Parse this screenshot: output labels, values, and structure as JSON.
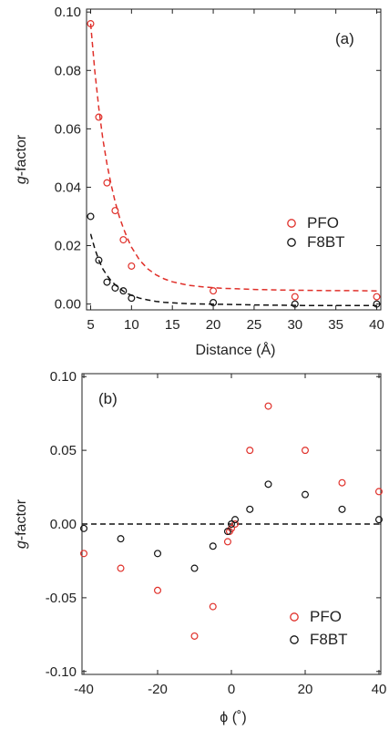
{
  "chart_data": [
    {
      "type": "scatter",
      "panel_label": "(a)",
      "xlabel": "Distance (Å)",
      "ylabel_italic": "g",
      "ylabel_rest": "-factor",
      "xlim": [
        4.5,
        40.5
      ],
      "ylim": [
        -0.002,
        0.101
      ],
      "xticks": [
        5,
        10,
        15,
        20,
        25,
        30,
        35,
        40
      ],
      "yticks": [
        0.0,
        0.02,
        0.04,
        0.06,
        0.08,
        0.1
      ],
      "ytick_labels": [
        "0.00",
        "0.02",
        "0.04",
        "0.06",
        "0.08",
        "0.10"
      ],
      "legend_position": "right",
      "series": [
        {
          "name": "PFO",
          "color": "#e0302a",
          "x": [
            5,
            6,
            7,
            8,
            9,
            10,
            20,
            30,
            40
          ],
          "y": [
            0.096,
            0.064,
            0.0415,
            0.032,
            0.022,
            0.013,
            0.0045,
            0.0025,
            0.0025
          ],
          "fit": {
            "x": [
              5,
              5.5,
              6,
              6.5,
              7,
              7.5,
              8,
              8.5,
              9,
              9.5,
              10,
              11,
              12,
              13,
              14,
              15,
              17,
              19,
              21,
              23,
              25,
              28,
              31,
              34,
              37,
              40
            ],
            "y": [
              0.096,
              0.08,
              0.067,
              0.0565,
              0.048,
              0.041,
              0.035,
              0.03,
              0.026,
              0.0225,
              0.0195,
              0.015,
              0.012,
              0.01,
              0.0086,
              0.0076,
              0.0064,
              0.0058,
              0.0054,
              0.0052,
              0.005,
              0.0048,
              0.0047,
              0.0046,
              0.0046,
              0.0045
            ]
          }
        },
        {
          "name": "F8BT",
          "color": "#111111",
          "x": [
            5,
            6,
            7,
            8,
            9,
            10,
            20,
            30,
            40
          ],
          "y": [
            0.03,
            0.015,
            0.0075,
            0.0055,
            0.0045,
            0.002,
            0.0005,
            0.0,
            0.0
          ],
          "fit": {
            "x": [
              5,
              5.5,
              6,
              6.5,
              7,
              7.5,
              8,
              8.5,
              9,
              9.5,
              10,
              11,
              12,
              13,
              14,
              15,
              17,
              19,
              21,
              23,
              25,
              28,
              31,
              34,
              37,
              40
            ],
            "y": [
              0.024,
              0.019,
              0.015,
              0.012,
              0.0098,
              0.008,
              0.0066,
              0.0054,
              0.0044,
              0.0036,
              0.003,
              0.002,
              0.0014,
              0.0009,
              0.0006,
              0.0004,
              0.0001,
              0.0,
              -0.0001,
              -0.0002,
              -0.0003,
              -0.0004,
              -0.0005,
              -0.0005,
              -0.0005,
              -0.0005
            ]
          }
        }
      ]
    },
    {
      "type": "scatter",
      "panel_label": "(b)",
      "xlabel": "ϕ (˚)",
      "ylabel_italic": "g",
      "ylabel_rest": "-factor",
      "xlim": [
        -40.5,
        40.5
      ],
      "ylim": [
        -0.102,
        0.102
      ],
      "xticks": [
        -40,
        -20,
        0,
        20,
        40
      ],
      "yticks": [
        -0.1,
        -0.05,
        0.0,
        0.05,
        0.1
      ],
      "ytick_labels": [
        "-0.10",
        "-0.05",
        "0.00",
        "0.05",
        "0.10"
      ],
      "reference_line_y": 0,
      "legend_position": "bottom-right",
      "series": [
        {
          "name": "PFO",
          "color": "#e0302a",
          "x": [
            -40,
            -30,
            -20,
            -10,
            -5,
            -1,
            -0.5,
            0,
            1,
            5,
            10,
            20,
            30,
            40
          ],
          "y": [
            -0.02,
            -0.03,
            -0.045,
            -0.076,
            -0.056,
            -0.012,
            -0.005,
            -0.003,
            0.0,
            0.05,
            0.08,
            0.05,
            0.028,
            0.022
          ]
        },
        {
          "name": "F8BT",
          "color": "#111111",
          "x": [
            -40,
            -30,
            -20,
            -10,
            -5,
            -1,
            0,
            1,
            5,
            10,
            20,
            30,
            40
          ],
          "y": [
            -0.003,
            -0.01,
            -0.02,
            -0.03,
            -0.015,
            -0.005,
            0.0,
            0.003,
            0.01,
            0.027,
            0.02,
            0.01,
            0.003
          ]
        }
      ]
    }
  ]
}
